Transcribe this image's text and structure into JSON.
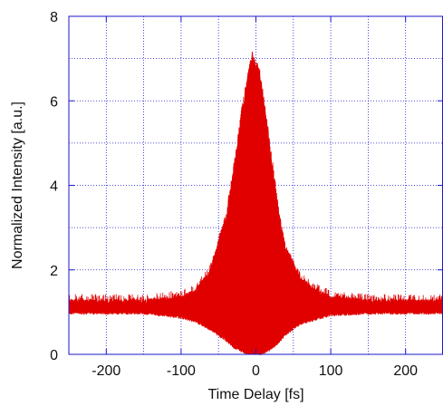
{
  "chart_data": {
    "type": "line",
    "xlabel": "Time Delay [fs]",
    "ylabel": "Normalized Intensity [a.u.]",
    "xlim": [
      -250,
      250
    ],
    "ylim": [
      0,
      8
    ],
    "x_ticks": [
      {
        "value": -200,
        "label": "-200"
      },
      {
        "value": -100,
        "label": "-100"
      },
      {
        "value": 0,
        "label": "0"
      },
      {
        "value": 100,
        "label": "100"
      },
      {
        "value": 200,
        "label": "200"
      }
    ],
    "y_ticks": [
      {
        "value": 0,
        "label": "0"
      },
      {
        "value": 2,
        "label": "2"
      },
      {
        "value": 4,
        "label": "4"
      },
      {
        "value": 6,
        "label": "6"
      },
      {
        "value": 8,
        "label": "8"
      }
    ],
    "grid": true,
    "grid_style": "dotted",
    "series": [
      {
        "color": "#e00000",
        "description_points": "interferometric autocorrelation envelope",
        "x": [
          -250,
          -200,
          -150,
          -100,
          -80,
          -60,
          -40,
          -30,
          -20,
          -10,
          -5,
          0,
          5,
          10,
          20,
          30,
          40,
          60,
          80,
          100,
          150,
          200,
          250
        ],
        "upper": [
          1.25,
          1.25,
          1.25,
          1.35,
          1.5,
          2.0,
          3.2,
          4.3,
          5.6,
          6.6,
          7.0,
          6.8,
          6.6,
          6.0,
          4.7,
          3.4,
          2.4,
          1.75,
          1.5,
          1.35,
          1.25,
          1.25,
          1.25
        ],
        "lower": [
          1.0,
          1.0,
          1.0,
          0.9,
          0.8,
          0.6,
          0.35,
          0.2,
          0.1,
          0.03,
          0.0,
          0.0,
          0.02,
          0.05,
          0.15,
          0.3,
          0.5,
          0.75,
          0.85,
          0.95,
          1.0,
          1.0,
          1.0
        ]
      }
    ],
    "colors": {
      "axis": "#1a1acc",
      "grid": "#1a1acc",
      "trace": "#e00000"
    }
  }
}
